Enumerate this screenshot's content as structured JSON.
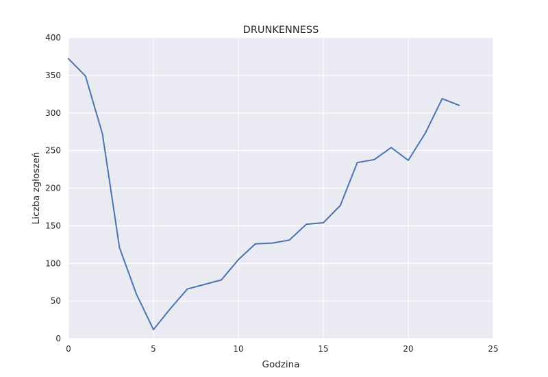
{
  "chart_data": {
    "type": "line",
    "title": "DRUNKENNESS",
    "xlabel": "Godzina",
    "ylabel": "Liczba zgłoszeń",
    "xlim": [
      0,
      25
    ],
    "ylim": [
      0,
      400
    ],
    "xticks": [
      0,
      5,
      10,
      15,
      20,
      25
    ],
    "yticks": [
      0,
      50,
      100,
      150,
      200,
      250,
      300,
      350,
      400
    ],
    "grid": true,
    "line_color": "#4C72B0",
    "background_color": "#EAEAF2",
    "x": [
      0,
      1,
      2,
      3,
      4,
      5,
      6,
      7,
      8,
      9,
      10,
      11,
      12,
      13,
      14,
      15,
      16,
      17,
      18,
      19,
      20,
      21,
      22,
      23
    ],
    "values": [
      372,
      349,
      272,
      121,
      59,
      12,
      40,
      66,
      72,
      78,
      105,
      126,
      127,
      131,
      152,
      154,
      177,
      234,
      238,
      254,
      237,
      273,
      319,
      310
    ]
  }
}
